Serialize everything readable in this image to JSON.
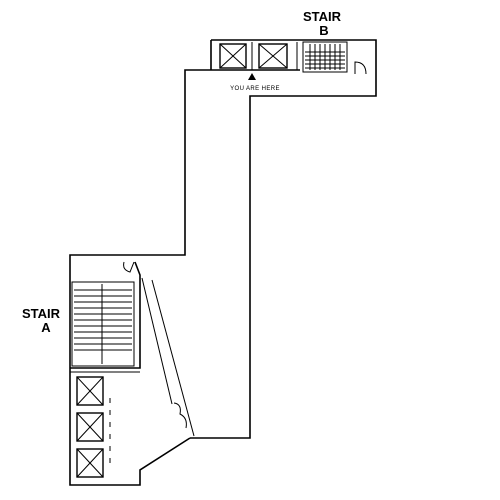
{
  "labels": {
    "stair_b_line1": "STAIR",
    "stair_b_line2": "B",
    "stair_a_line1": "STAIR",
    "stair_a_line2": "A",
    "you_are_here": "YOU ARE HERE"
  },
  "icons": {
    "you_are_here_marker": "triangle-up",
    "elevator": "x-box"
  },
  "colors": {
    "line": "#000000",
    "background": "#ffffff"
  }
}
